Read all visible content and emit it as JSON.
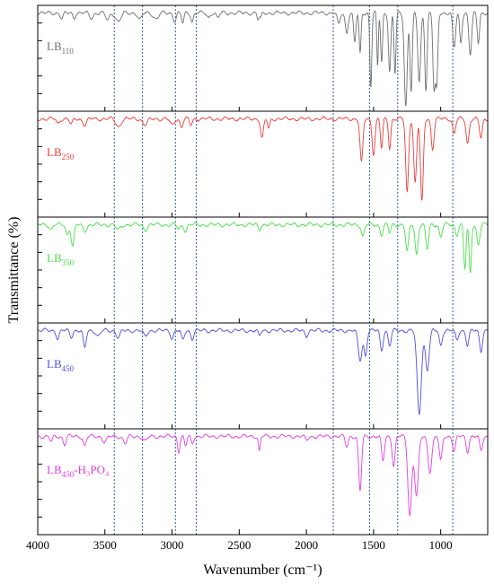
{
  "chart_data": {
    "type": "line",
    "xlabel": "Wavenumber (cm⁻¹)",
    "ylabel": "Transmittance (%)",
    "xlim": [
      4000,
      650
    ],
    "x_reversed": true,
    "x_ticks": [
      4000,
      3500,
      3000,
      2500,
      2000,
      1500,
      1000
    ],
    "x_tick_labels": [
      "4000",
      "3500",
      "3000",
      "2500",
      "2000",
      "1500",
      "1000"
    ],
    "grid": false,
    "reference_lines": [
      3430,
      3220,
      2975,
      2820,
      1800,
      1530,
      1320,
      910
    ],
    "panels": [
      {
        "label_main": "LB",
        "label_sub": "110",
        "label_extra": "",
        "color": "#707070",
        "baseline": 0.95,
        "features": [
          [
            3820,
            0.06,
            15
          ],
          [
            3730,
            0.05,
            12
          ],
          [
            3600,
            0.05,
            20
          ],
          [
            3480,
            0.07,
            20
          ],
          [
            3400,
            0.09,
            25
          ],
          [
            3240,
            0.07,
            20
          ],
          [
            3120,
            0.06,
            25
          ],
          [
            2980,
            0.08,
            15
          ],
          [
            2920,
            0.1,
            12
          ],
          [
            2850,
            0.09,
            12
          ],
          [
            2730,
            0.05,
            15
          ],
          [
            2660,
            0.05,
            15
          ],
          [
            2360,
            0.07,
            10
          ],
          [
            2340,
            0.06,
            10
          ],
          [
            1760,
            0.12,
            15
          ],
          [
            1700,
            0.2,
            15
          ],
          [
            1640,
            0.3,
            12
          ],
          [
            1600,
            0.42,
            10
          ],
          [
            1520,
            0.75,
            10
          ],
          [
            1470,
            0.55,
            8
          ],
          [
            1440,
            0.5,
            10
          ],
          [
            1380,
            0.6,
            12
          ],
          [
            1340,
            0.62,
            10
          ],
          [
            1260,
            0.95,
            15
          ],
          [
            1220,
            0.8,
            12
          ],
          [
            1160,
            0.7,
            15
          ],
          [
            1110,
            0.78,
            12
          ],
          [
            1050,
            0.75,
            12
          ],
          [
            1030,
            0.72,
            12
          ],
          [
            900,
            0.35,
            15
          ],
          [
            850,
            0.3,
            12
          ],
          [
            780,
            0.42,
            15
          ],
          [
            720,
            0.3,
            12
          ]
        ]
      },
      {
        "label_main": "LB",
        "label_sub": "250",
        "label_extra": "",
        "color": "#e8403c",
        "baseline": 0.95,
        "features": [
          [
            3850,
            0.05,
            15
          ],
          [
            3750,
            0.06,
            15
          ],
          [
            3650,
            0.06,
            20
          ],
          [
            3400,
            0.08,
            25
          ],
          [
            3200,
            0.06,
            25
          ],
          [
            3000,
            0.07,
            20
          ],
          [
            2930,
            0.08,
            15
          ],
          [
            2860,
            0.06,
            15
          ],
          [
            2330,
            0.2,
            15
          ],
          [
            2280,
            0.1,
            12
          ],
          [
            1590,
            0.45,
            15
          ],
          [
            1500,
            0.35,
            15
          ],
          [
            1440,
            0.3,
            12
          ],
          [
            1380,
            0.3,
            12
          ],
          [
            1250,
            0.75,
            15
          ],
          [
            1190,
            0.65,
            15
          ],
          [
            1140,
            0.85,
            15
          ],
          [
            1060,
            0.3,
            15
          ],
          [
            900,
            0.15,
            15
          ],
          [
            800,
            0.25,
            15
          ],
          [
            700,
            0.2,
            15
          ]
        ]
      },
      {
        "label_main": "LB",
        "label_sub": "350",
        "label_extra": "",
        "color": "#4ce04c",
        "baseline": 0.95,
        "features": [
          [
            3900,
            0.05,
            15
          ],
          [
            3780,
            0.1,
            15
          ],
          [
            3740,
            0.22,
            15
          ],
          [
            3650,
            0.06,
            20
          ],
          [
            3400,
            0.05,
            25
          ],
          [
            3200,
            0.05,
            20
          ],
          [
            2950,
            0.05,
            15
          ],
          [
            2900,
            0.06,
            15
          ],
          [
            2350,
            0.05,
            12
          ],
          [
            1580,
            0.12,
            15
          ],
          [
            1440,
            0.1,
            15
          ],
          [
            1380,
            0.08,
            12
          ],
          [
            1250,
            0.28,
            15
          ],
          [
            1180,
            0.3,
            15
          ],
          [
            1100,
            0.25,
            15
          ],
          [
            1000,
            0.12,
            15
          ],
          [
            880,
            0.1,
            15
          ],
          [
            820,
            0.45,
            12
          ],
          [
            780,
            0.5,
            12
          ],
          [
            720,
            0.2,
            15
          ]
        ]
      },
      {
        "label_main": "LB",
        "label_sub": "450",
        "label_extra": "",
        "color": "#5050dc",
        "baseline": 0.95,
        "features": [
          [
            3850,
            0.08,
            15
          ],
          [
            3750,
            0.06,
            15
          ],
          [
            3650,
            0.18,
            15
          ],
          [
            3550,
            0.06,
            20
          ],
          [
            3400,
            0.07,
            20
          ],
          [
            3200,
            0.06,
            20
          ],
          [
            3000,
            0.08,
            15
          ],
          [
            2920,
            0.1,
            15
          ],
          [
            2850,
            0.08,
            15
          ],
          [
            2350,
            0.06,
            12
          ],
          [
            2000,
            0.05,
            15
          ],
          [
            1600,
            0.3,
            20
          ],
          [
            1560,
            0.25,
            15
          ],
          [
            1440,
            0.2,
            15
          ],
          [
            1380,
            0.15,
            15
          ],
          [
            1160,
            0.85,
            22
          ],
          [
            1100,
            0.4,
            20
          ],
          [
            1000,
            0.15,
            15
          ],
          [
            880,
            0.1,
            15
          ],
          [
            800,
            0.15,
            15
          ],
          [
            700,
            0.2,
            15
          ]
        ]
      },
      {
        "label_main": "LB",
        "label_sub": "450",
        "label_extra": "-H₃PO₄",
        "color": "#e040e0",
        "baseline": 0.95,
        "features": [
          [
            3900,
            0.05,
            15
          ],
          [
            3800,
            0.08,
            15
          ],
          [
            3650,
            0.1,
            15
          ],
          [
            3500,
            0.06,
            20
          ],
          [
            3350,
            0.07,
            20
          ],
          [
            3200,
            0.05,
            20
          ],
          [
            2950,
            0.15,
            12
          ],
          [
            2900,
            0.1,
            12
          ],
          [
            2850,
            0.08,
            12
          ],
          [
            2350,
            0.15,
            10
          ],
          [
            2000,
            0.04,
            15
          ],
          [
            1700,
            0.1,
            15
          ],
          [
            1600,
            0.55,
            15
          ],
          [
            1430,
            0.25,
            15
          ],
          [
            1350,
            0.3,
            15
          ],
          [
            1230,
            0.8,
            20
          ],
          [
            1180,
            0.6,
            20
          ],
          [
            1080,
            0.35,
            20
          ],
          [
            1000,
            0.25,
            15
          ],
          [
            900,
            0.15,
            15
          ],
          [
            800,
            0.15,
            15
          ],
          [
            700,
            0.15,
            15
          ]
        ]
      }
    ]
  }
}
